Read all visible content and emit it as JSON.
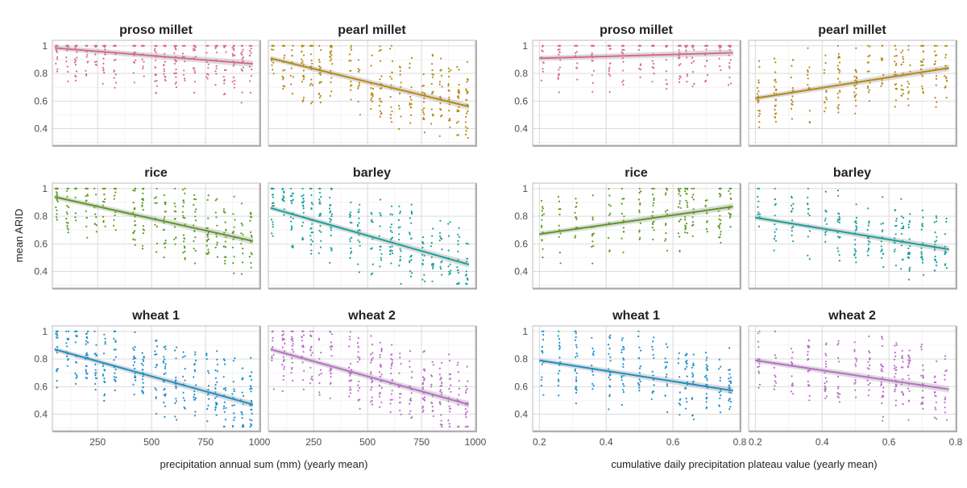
{
  "figure": {
    "ylabel": "mean ARID",
    "panel_groups": [
      {
        "xlabel": "precipitation annual sum (mm) (yearly mean)",
        "x_ticks": [
          250,
          500,
          750,
          1000
        ],
        "xlim": [
          40,
          1000
        ]
      },
      {
        "xlabel": "cumulative daily precipitation plateau value (yearly mean)",
        "x_ticks": [
          0.2,
          0.4,
          0.6,
          0.8
        ],
        "xlim": [
          0.18,
          0.8
        ]
      }
    ],
    "y_ticks": [
      0.4,
      0.6,
      0.8,
      1.0
    ],
    "ylim_rows": [
      [
        0.28,
        1.04
      ],
      [
        0.28,
        1.04
      ],
      [
        0.28,
        1.04
      ]
    ]
  },
  "chart_data": [
    {
      "type": "scatter",
      "title": "proso millet",
      "color": "#d96a8a",
      "xlim": [
        40,
        1000
      ],
      "ylim": [
        0.28,
        1.04
      ],
      "fit": {
        "x": [
          50,
          970
        ],
        "y": [
          0.985,
          0.87
        ]
      },
      "x_clusters": [
        60,
        110,
        150,
        200,
        240,
        280,
        330,
        420,
        460,
        520,
        560,
        610,
        650,
        700,
        760,
        800,
        840,
        880,
        920,
        960
      ]
    },
    {
      "type": "scatter",
      "title": "pearl millet",
      "color": "#b8880f",
      "xlim": [
        40,
        1000
      ],
      "ylim": [
        0.28,
        1.04
      ],
      "fit": {
        "x": [
          50,
          970
        ],
        "y": [
          0.91,
          0.56
        ]
      },
      "x_clusters": [
        60,
        110,
        150,
        200,
        240,
        280,
        330,
        420,
        460,
        520,
        560,
        610,
        650,
        700,
        760,
        800,
        840,
        880,
        920,
        960
      ]
    },
    {
      "type": "scatter",
      "title": "proso millet",
      "color": "#d96a8a",
      "xlim": [
        0.18,
        0.8
      ],
      "ylim": [
        0.28,
        1.04
      ],
      "fit": {
        "x": [
          0.2,
          0.78
        ],
        "y": [
          0.91,
          0.95
        ]
      },
      "x_clusters": [
        0.21,
        0.26,
        0.31,
        0.36,
        0.41,
        0.45,
        0.5,
        0.54,
        0.58,
        0.62,
        0.64,
        0.66,
        0.7,
        0.74,
        0.77
      ]
    },
    {
      "type": "scatter",
      "title": "pearl millet",
      "color": "#b8880f",
      "xlim": [
        0.18,
        0.8
      ],
      "ylim": [
        0.28,
        1.04
      ],
      "fit": {
        "x": [
          0.2,
          0.78
        ],
        "y": [
          0.62,
          0.84
        ]
      },
      "x_clusters": [
        0.21,
        0.26,
        0.31,
        0.36,
        0.41,
        0.45,
        0.5,
        0.54,
        0.58,
        0.62,
        0.64,
        0.66,
        0.7,
        0.74,
        0.77
      ]
    },
    {
      "type": "scatter",
      "title": "rice",
      "color": "#5a9a1e",
      "xlim": [
        40,
        1000
      ],
      "ylim": [
        0.28,
        1.04
      ],
      "fit": {
        "x": [
          50,
          970
        ],
        "y": [
          0.94,
          0.62
        ]
      },
      "x_clusters": [
        60,
        110,
        150,
        200,
        240,
        280,
        330,
        420,
        460,
        520,
        560,
        610,
        650,
        700,
        760,
        800,
        840,
        880,
        920,
        960
      ]
    },
    {
      "type": "scatter",
      "title": "barley",
      "color": "#16a09a",
      "xlim": [
        40,
        1000
      ],
      "ylim": [
        0.28,
        1.04
      ],
      "fit": {
        "x": [
          50,
          970
        ],
        "y": [
          0.86,
          0.45
        ]
      },
      "x_clusters": [
        60,
        110,
        150,
        200,
        240,
        280,
        330,
        420,
        460,
        520,
        560,
        610,
        650,
        700,
        760,
        800,
        840,
        880,
        920,
        960
      ]
    },
    {
      "type": "scatter",
      "title": "rice",
      "color": "#5a9a1e",
      "xlim": [
        0.18,
        0.8
      ],
      "ylim": [
        0.28,
        1.04
      ],
      "fit": {
        "x": [
          0.2,
          0.78
        ],
        "y": [
          0.67,
          0.87
        ]
      },
      "x_clusters": [
        0.21,
        0.26,
        0.31,
        0.36,
        0.41,
        0.45,
        0.5,
        0.54,
        0.58,
        0.62,
        0.64,
        0.66,
        0.7,
        0.74,
        0.77
      ]
    },
    {
      "type": "scatter",
      "title": "barley",
      "color": "#16a09a",
      "xlim": [
        0.18,
        0.8
      ],
      "ylim": [
        0.28,
        1.04
      ],
      "fit": {
        "x": [
          0.2,
          0.78
        ],
        "y": [
          0.79,
          0.56
        ]
      },
      "x_clusters": [
        0.21,
        0.26,
        0.31,
        0.36,
        0.41,
        0.45,
        0.5,
        0.54,
        0.58,
        0.62,
        0.64,
        0.66,
        0.7,
        0.74,
        0.77
      ]
    },
    {
      "type": "scatter",
      "title": "wheat 1",
      "color": "#1b90c9",
      "xlim": [
        40,
        1000
      ],
      "ylim": [
        0.28,
        1.04
      ],
      "fit": {
        "x": [
          50,
          970
        ],
        "y": [
          0.87,
          0.47
        ]
      },
      "x_clusters": [
        60,
        110,
        150,
        200,
        240,
        280,
        330,
        420,
        460,
        520,
        560,
        610,
        650,
        700,
        760,
        800,
        840,
        880,
        920,
        960
      ]
    },
    {
      "type": "scatter",
      "title": "wheat 2",
      "color": "#bb6cc9",
      "xlim": [
        40,
        1000
      ],
      "ylim": [
        0.28,
        1.04
      ],
      "fit": {
        "x": [
          50,
          970
        ],
        "y": [
          0.87,
          0.47
        ]
      },
      "x_clusters": [
        60,
        110,
        150,
        200,
        240,
        280,
        330,
        420,
        460,
        520,
        560,
        610,
        650,
        700,
        760,
        800,
        840,
        880,
        920,
        960
      ]
    },
    {
      "type": "scatter",
      "title": "wheat 1",
      "color": "#1b90c9",
      "xlim": [
        0.18,
        0.8
      ],
      "ylim": [
        0.28,
        1.04
      ],
      "fit": {
        "x": [
          0.2,
          0.78
        ],
        "y": [
          0.79,
          0.57
        ]
      },
      "x_clusters": [
        0.21,
        0.26,
        0.31,
        0.36,
        0.41,
        0.45,
        0.5,
        0.54,
        0.58,
        0.62,
        0.64,
        0.66,
        0.7,
        0.74,
        0.77
      ]
    },
    {
      "type": "scatter",
      "title": "wheat 2",
      "color": "#bb6cc9",
      "xlim": [
        0.18,
        0.8
      ],
      "ylim": [
        0.28,
        1.04
      ],
      "fit": {
        "x": [
          0.2,
          0.78
        ],
        "y": [
          0.79,
          0.58
        ]
      },
      "x_clusters": [
        0.21,
        0.26,
        0.31,
        0.36,
        0.41,
        0.45,
        0.5,
        0.54,
        0.58,
        0.62,
        0.64,
        0.66,
        0.7,
        0.74,
        0.77
      ]
    }
  ]
}
